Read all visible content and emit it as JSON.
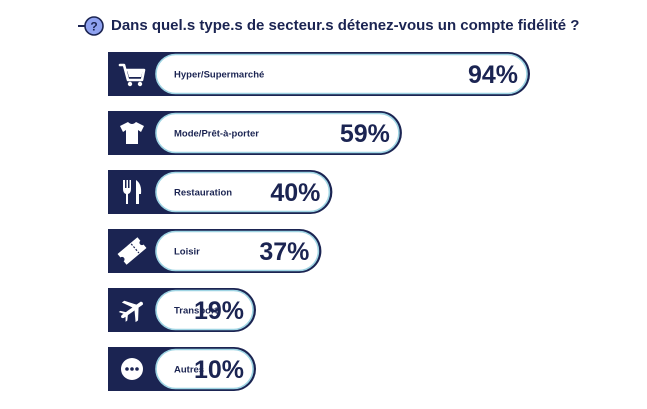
{
  "title": "Dans quel.s type.s de secteur.s détenez-vous un compte fidélité ?",
  "colors": {
    "navy": "#1b2452",
    "pill_border": "#9ed4e3",
    "accent": "#7c8fe6",
    "text": "#1b2452",
    "background": "#ffffff"
  },
  "chart_data": {
    "type": "bar",
    "orientation": "horizontal",
    "title": "Dans quel.s type.s de secteur.s détenez-vous un compte fidélité ?",
    "categories": [
      "Hyper/Supermarché",
      "Mode/Prêt-à-porter",
      "Restauration",
      "Loisir",
      "Transport",
      "Autres"
    ],
    "values": [
      94,
      59,
      40,
      37,
      19,
      10
    ],
    "value_labels": [
      "94%",
      "59%",
      "40%",
      "37%",
      "19%",
      "10%"
    ],
    "icons": [
      "shopping-cart-icon",
      "t-shirt-icon",
      "fork-knife-icon",
      "ticket-icon",
      "airplane-icon",
      "ellipsis-icon"
    ],
    "xlim": [
      0,
      100
    ],
    "grid": false,
    "legend": "none"
  }
}
